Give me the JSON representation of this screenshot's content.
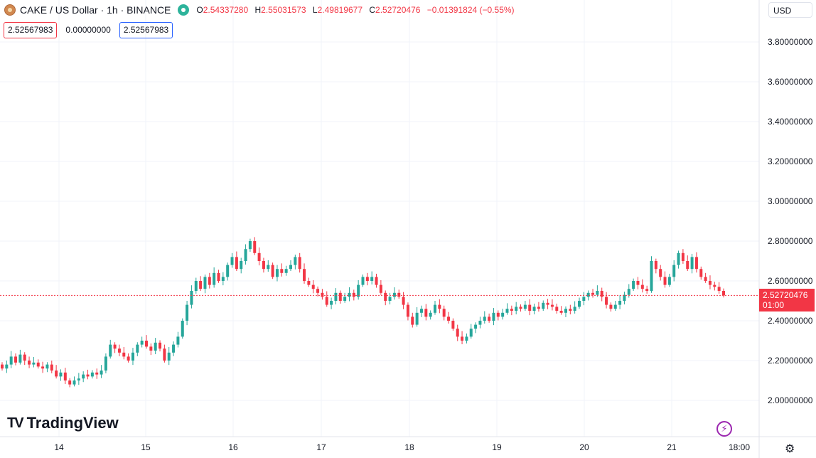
{
  "header": {
    "symbol": "CAKE / US Dollar · 1h · BINANCE",
    "open_label": "O",
    "open": "2.54337280",
    "high_label": "H",
    "high": "2.55031573",
    "low_label": "L",
    "low": "2.49819677",
    "close_label": "C",
    "close": "2.52720476",
    "change": "−0.01391824 (−0.55%)"
  },
  "indicator_boxes": {
    "bid": "2.52567983",
    "spread": "0.00000000",
    "ask": "2.52567983"
  },
  "currency_selector": "USD",
  "last_price": {
    "value": "2.52720476",
    "countdown": "01:00"
  },
  "brand": "TradingView",
  "colors": {
    "up": "#26a69a",
    "down": "#f23645",
    "grid": "#f0f3fa",
    "price_line": "#f23645"
  },
  "icons": {
    "logo": "cake-coin-icon",
    "visibility": "eye-icon",
    "alert": "lightning-icon",
    "settings": "gear-icon"
  },
  "chart_data": {
    "type": "candlestick",
    "title": "CAKE / US Dollar · 1h · BINANCE",
    "y_ticks": [
      "3.80000000",
      "3.60000000",
      "3.40000000",
      "3.20000000",
      "3.00000000",
      "2.80000000",
      "2.60000000",
      "2.40000000",
      "2.20000000",
      "2.00000000"
    ],
    "ylim": [
      1.8,
      3.9
    ],
    "x_ticks": [
      "14",
      "15",
      "16",
      "17",
      "18",
      "19",
      "20",
      "21",
      "18:00"
    ],
    "closes": [
      2.16,
      2.18,
      2.22,
      2.19,
      2.23,
      2.2,
      2.18,
      2.19,
      2.17,
      2.16,
      2.18,
      2.15,
      2.12,
      2.14,
      2.1,
      2.08,
      2.1,
      2.11,
      2.13,
      2.12,
      2.14,
      2.13,
      2.15,
      2.22,
      2.28,
      2.26,
      2.24,
      2.22,
      2.2,
      2.24,
      2.28,
      2.3,
      2.27,
      2.25,
      2.29,
      2.26,
      2.2,
      2.24,
      2.28,
      2.32,
      2.4,
      2.48,
      2.55,
      2.6,
      2.56,
      2.62,
      2.58,
      2.64,
      2.6,
      2.62,
      2.68,
      2.72,
      2.66,
      2.7,
      2.76,
      2.8,
      2.74,
      2.7,
      2.66,
      2.68,
      2.62,
      2.66,
      2.64,
      2.66,
      2.68,
      2.72,
      2.66,
      2.6,
      2.58,
      2.56,
      2.54,
      2.52,
      2.48,
      2.5,
      2.54,
      2.5,
      2.52,
      2.54,
      2.52,
      2.58,
      2.62,
      2.6,
      2.62,
      2.58,
      2.54,
      2.5,
      2.52,
      2.54,
      2.52,
      2.48,
      2.42,
      2.38,
      2.44,
      2.46,
      2.42,
      2.44,
      2.48,
      2.46,
      2.42,
      2.4,
      2.36,
      2.32,
      2.3,
      2.32,
      2.36,
      2.38,
      2.4,
      2.42,
      2.4,
      2.44,
      2.42,
      2.44,
      2.46,
      2.45,
      2.47,
      2.46,
      2.48,
      2.45,
      2.47,
      2.46,
      2.49,
      2.48,
      2.47,
      2.45,
      2.44,
      2.46,
      2.45,
      2.47,
      2.5,
      2.52,
      2.54,
      2.53,
      2.55,
      2.52,
      2.48,
      2.46,
      2.48,
      2.5,
      2.53,
      2.56,
      2.6,
      2.58,
      2.56,
      2.55,
      2.7,
      2.66,
      2.62,
      2.58,
      2.62,
      2.68,
      2.74,
      2.7,
      2.66,
      2.72,
      2.66,
      2.62,
      2.6,
      2.58,
      2.57,
      2.55,
      2.527
    ]
  }
}
